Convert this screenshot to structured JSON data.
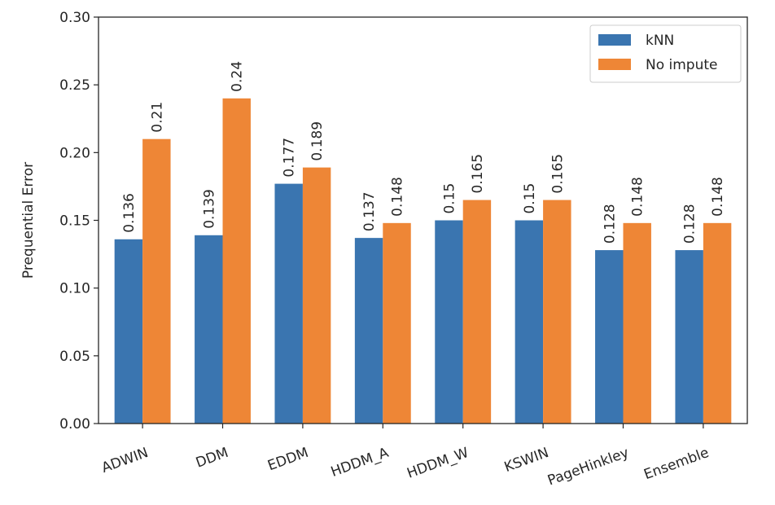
{
  "chart_data": {
    "type": "bar",
    "ylabel": "Prequential Error",
    "xlabel": "",
    "ylim": [
      0,
      0.3
    ],
    "yticks": [
      "0.00",
      "0.05",
      "0.10",
      "0.15",
      "0.20",
      "0.25",
      "0.30"
    ],
    "grid": false,
    "legend_position": "top-right",
    "categories": [
      "ADWIN",
      "DDM",
      "EDDM",
      "HDDM_A",
      "HDDM_W",
      "KSWIN",
      "PageHinkley",
      "Ensemble"
    ],
    "series": [
      {
        "name": "kNN",
        "color": "#3a75b0",
        "values": [
          0.136,
          0.139,
          0.177,
          0.137,
          0.15,
          0.15,
          0.128,
          0.128
        ],
        "labels": [
          "0.136",
          "0.139",
          "0.177",
          "0.137",
          "0.15",
          "0.15",
          "0.128",
          "0.128"
        ]
      },
      {
        "name": "No impute",
        "color": "#ee8636",
        "values": [
          0.21,
          0.24,
          0.189,
          0.148,
          0.165,
          0.165,
          0.148,
          0.148
        ],
        "labels": [
          "0.21",
          "0.24",
          "0.189",
          "0.148",
          "0.165",
          "0.165",
          "0.148",
          "0.148"
        ]
      }
    ]
  }
}
